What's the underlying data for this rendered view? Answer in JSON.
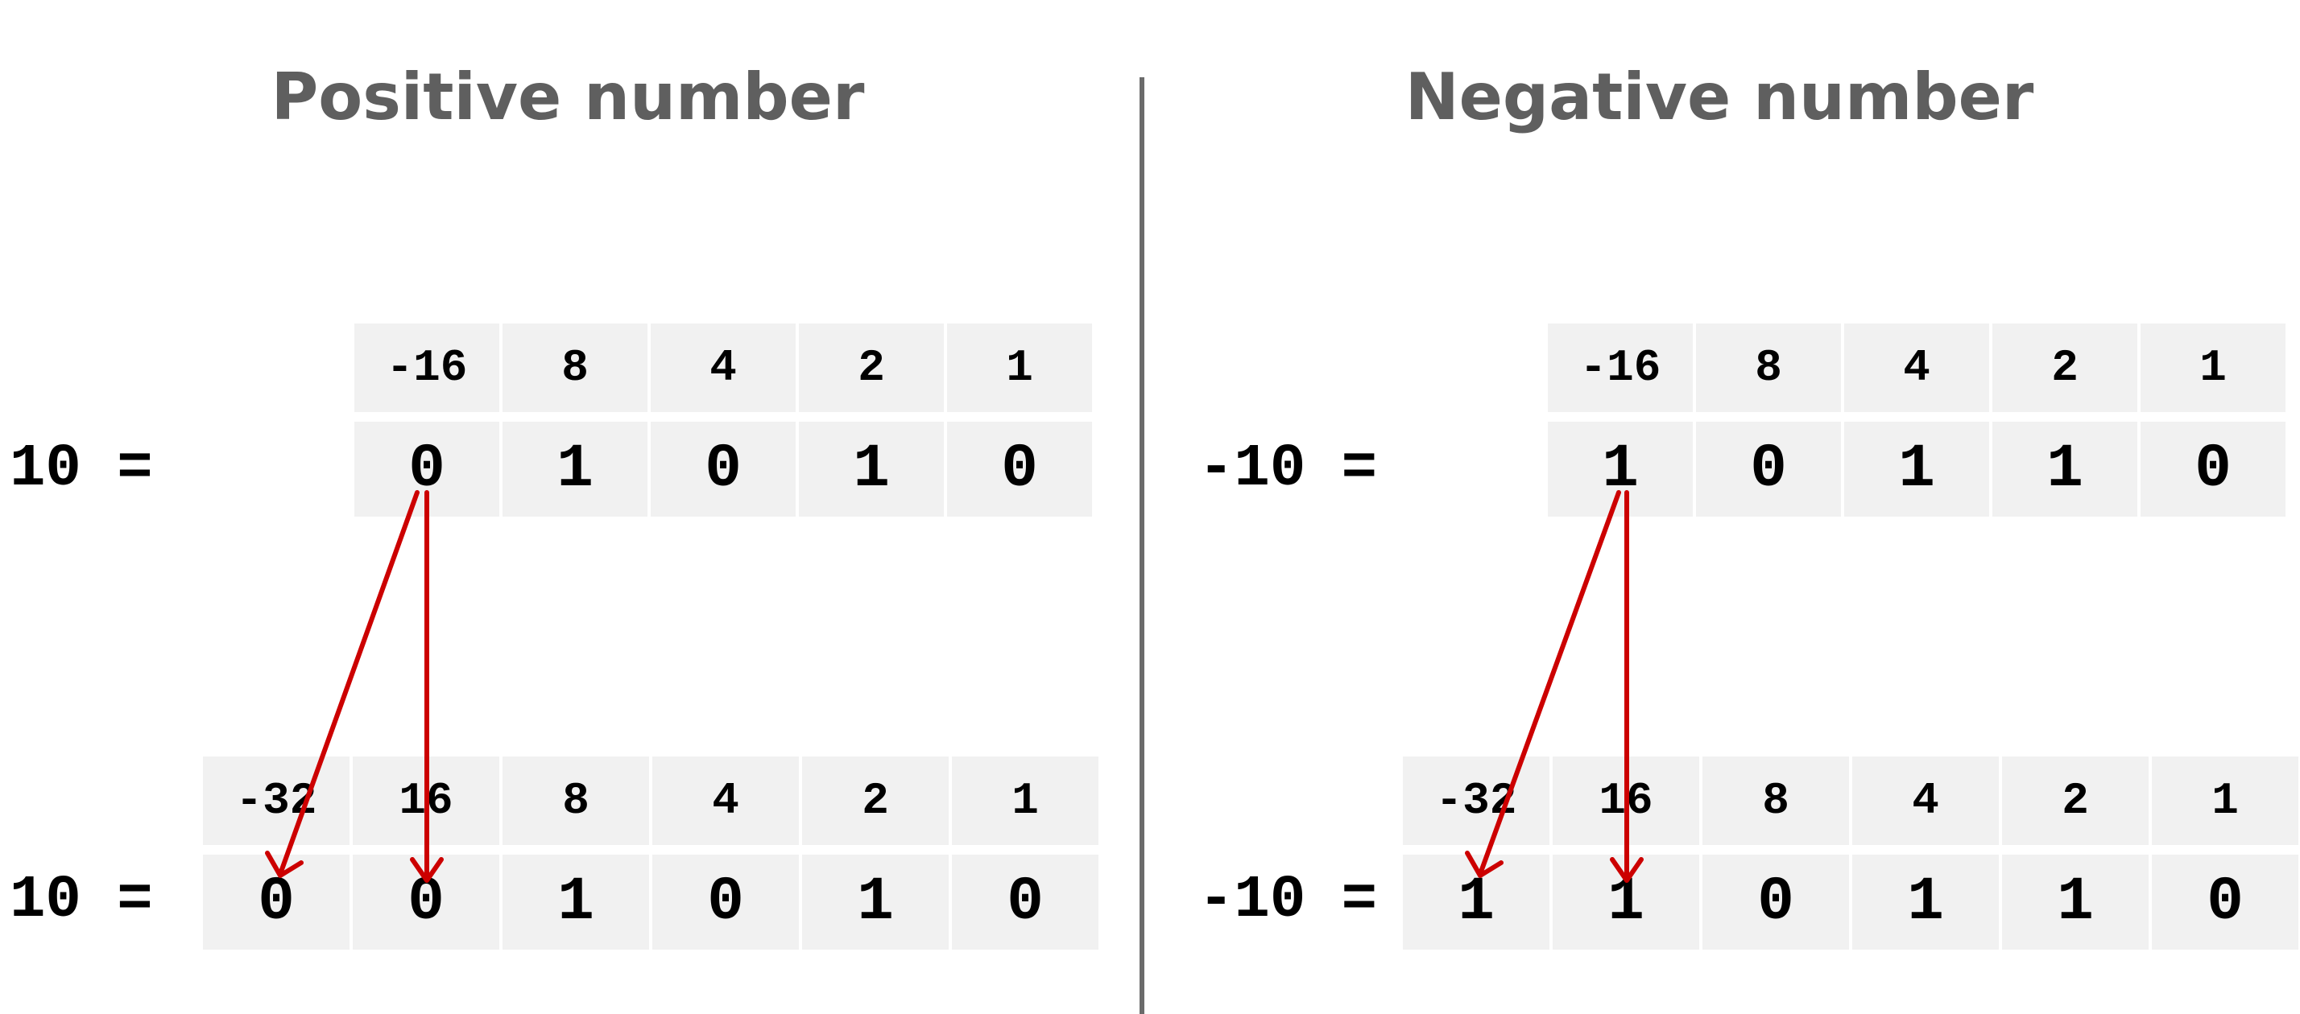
{
  "left": {
    "title": "Positive number",
    "top_equation": "10 =",
    "top_weights": [
      "-16",
      "8",
      "4",
      "2",
      "1"
    ],
    "top_bits": [
      "0",
      "1",
      "0",
      "1",
      "0"
    ],
    "bottom_equation": "10 =",
    "bottom_weights": [
      "-32",
      "16",
      "8",
      "4",
      "2",
      "1"
    ],
    "bottom_bits": [
      "0",
      "0",
      "1",
      "0",
      "1",
      "0"
    ]
  },
  "right": {
    "title": "Negative number",
    "top_equation": "-10 =",
    "top_weights": [
      "-16",
      "8",
      "4",
      "2",
      "1"
    ],
    "top_bits": [
      "1",
      "0",
      "1",
      "1",
      "0"
    ],
    "bottom_equation": "-10 =",
    "bottom_weights": [
      "-32",
      "16",
      "8",
      "4",
      "2",
      "1"
    ],
    "bottom_bits": [
      "1",
      "1",
      "0",
      "1",
      "1",
      "0"
    ]
  },
  "colors": {
    "title": "#5f5f5f",
    "cell": "#f1f1f1",
    "arrow": "#cc0000",
    "divider": "#6b6b6b"
  }
}
